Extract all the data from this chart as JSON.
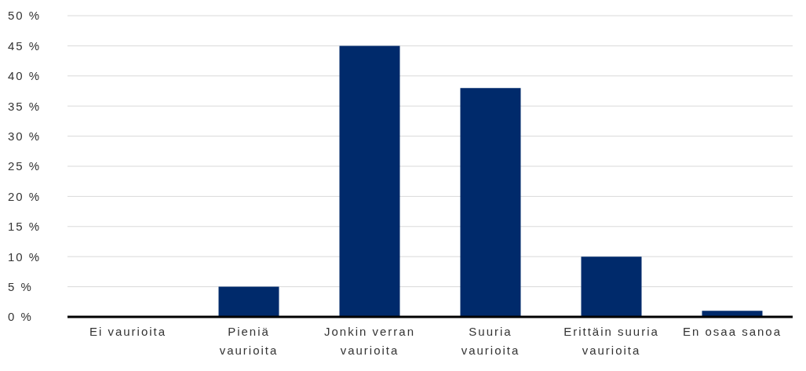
{
  "chart_data": {
    "type": "bar",
    "categories": [
      "Ei vaurioita",
      "Pieniä vaurioita",
      "Jonkin verran vaurioita",
      "Suuria vaurioita",
      "Erittäin suuria vaurioita",
      "En osaa sanoa"
    ],
    "values": [
      0,
      5,
      45,
      38,
      10,
      1
    ],
    "color": "#002a6b",
    "ylim": [
      0,
      50
    ],
    "yticks": [
      {
        "value": 0,
        "label": "0 %"
      },
      {
        "value": 5,
        "label": "5 %"
      },
      {
        "value": 10,
        "label": "10 %"
      },
      {
        "value": 15,
        "label": "15 %"
      },
      {
        "value": 20,
        "label": "20 %"
      },
      {
        "value": 25,
        "label": "25 %"
      },
      {
        "value": 30,
        "label": "30 %"
      },
      {
        "value": 35,
        "label": "35 %"
      },
      {
        "value": 40,
        "label": "40 %"
      },
      {
        "value": 45,
        "label": "45 %"
      },
      {
        "value": 50,
        "label": "50 %"
      }
    ],
    "grid": "y"
  }
}
